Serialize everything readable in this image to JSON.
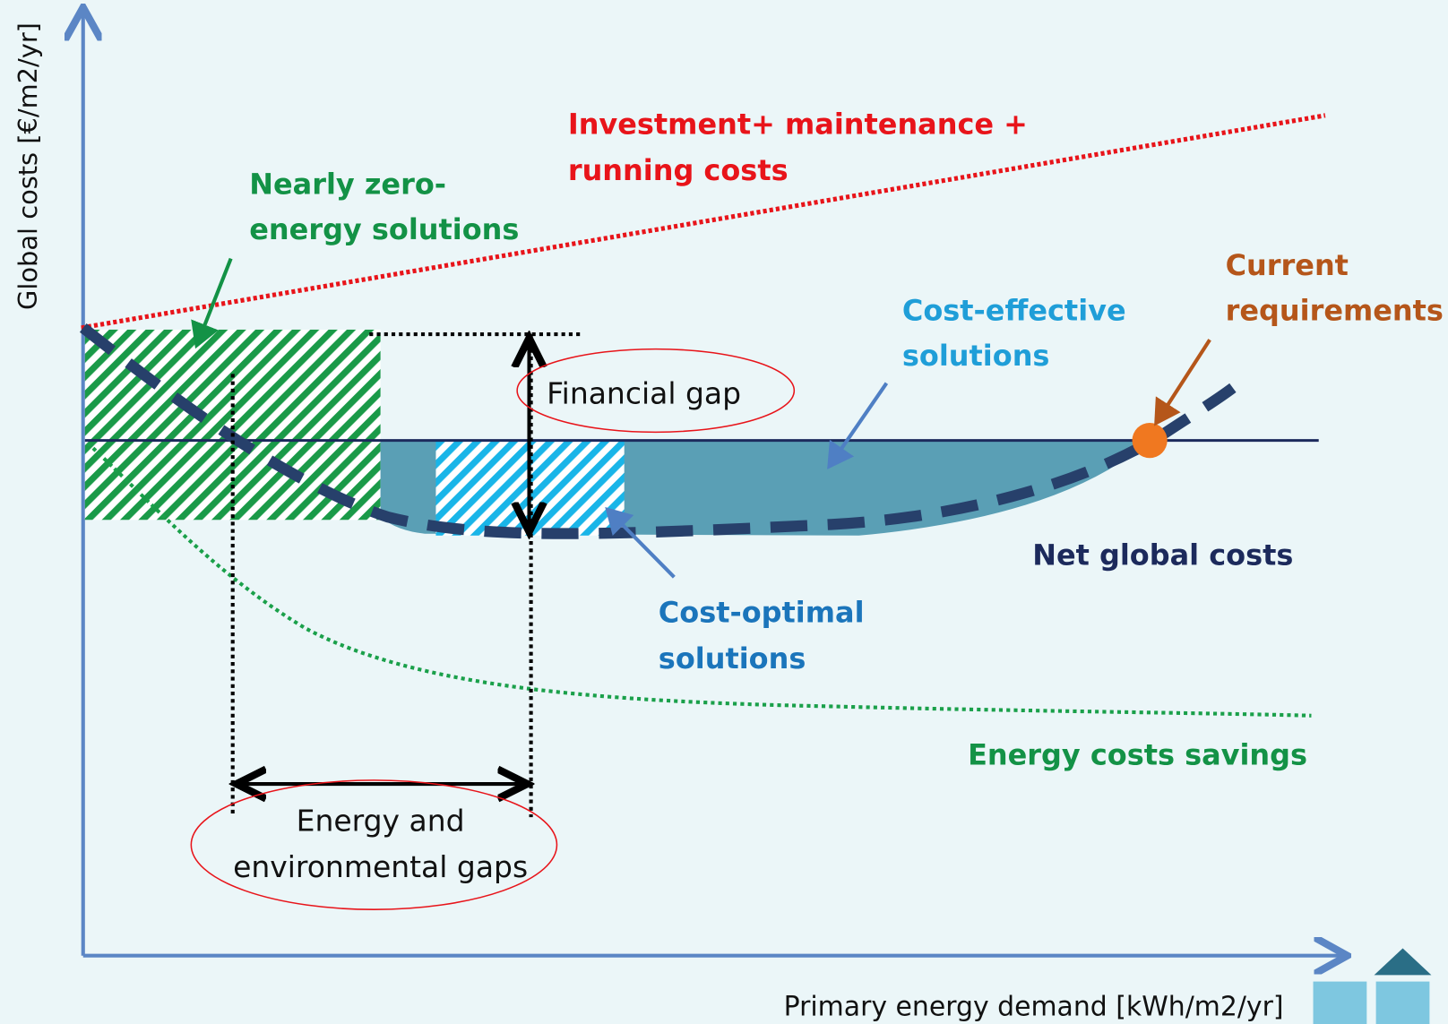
{
  "axes": {
    "y_label": "Global costs [€/m2/yr]",
    "x_label": "Primary energy demand [kWh/m2/yr]"
  },
  "labels": {
    "investment": [
      "Investment+ maintenance +",
      "running costs"
    ],
    "nearly_zero": [
      "Nearly zero-",
      "energy solutions"
    ],
    "current": [
      "Current",
      "requirements"
    ],
    "cost_effective": [
      "Cost-effective",
      "solutions"
    ],
    "financial_gap": "Financial gap",
    "net_global": "Net global costs",
    "cost_optimal": [
      "Cost-optimal",
      "solutions"
    ],
    "energy_savings": "Energy costs savings",
    "energy_gaps": [
      "Energy and",
      "environmental gaps"
    ]
  }
}
